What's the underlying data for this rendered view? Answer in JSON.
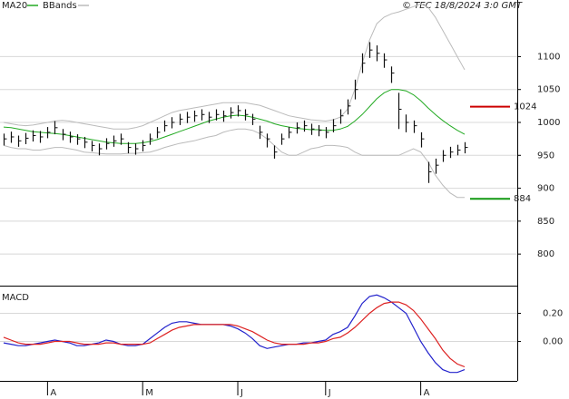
{
  "chart_data": {
    "type": "ohlc",
    "title": "© TEC 18/8/2024 3:0 GMT",
    "categories": [
      null,
      null,
      null,
      null,
      null,
      null,
      "A",
      null,
      null,
      null,
      null,
      null,
      null,
      null,
      null,
      null,
      null,
      null,
      null,
      "M",
      null,
      null,
      null,
      null,
      null,
      null,
      null,
      null,
      null,
      null,
      null,
      null,
      "J",
      null,
      null,
      null,
      null,
      null,
      null,
      null,
      null,
      null,
      null,
      null,
      "J",
      null,
      null,
      null,
      null,
      null,
      null,
      null,
      null,
      null,
      null,
      null,
      null,
      "A",
      null,
      null,
      null,
      null,
      null,
      null
    ],
    "bars": {
      "color": "#111111",
      "close": [
        975,
        978,
        972,
        976,
        980,
        978,
        985,
        992,
        982,
        978,
        975,
        970,
        965,
        960,
        968,
        972,
        975,
        962,
        960,
        965,
        975,
        985,
        995,
        1000,
        1005,
        1008,
        1010,
        1012,
        1008,
        1012,
        1010,
        1015,
        1018,
        1012,
        1005,
        985,
        975,
        955,
        975,
        985,
        992,
        995,
        990,
        988,
        985,
        995,
        1010,
        1025,
        1050,
        1090,
        1110,
        1105,
        1095,
        1075,
        1020,
        1000,
        995,
        975,
        925,
        935,
        950,
        955,
        958,
        962
      ],
      "high": [
        983,
        986,
        980,
        984,
        988,
        987,
        993,
        1002,
        990,
        986,
        982,
        978,
        972,
        968,
        976,
        980,
        983,
        970,
        968,
        973,
        983,
        993,
        1003,
        1008,
        1013,
        1016,
        1018,
        1020,
        1016,
        1020,
        1018,
        1023,
        1026,
        1020,
        1013,
        995,
        983,
        965,
        983,
        993,
        1000,
        1003,
        998,
        996,
        993,
        1005,
        1020,
        1035,
        1065,
        1105,
        1122,
        1117,
        1105,
        1085,
        1045,
        1012,
        1003,
        985,
        940,
        945,
        958,
        963,
        966,
        970
      ],
      "low": [
        965,
        969,
        963,
        967,
        971,
        969,
        976,
        982,
        973,
        969,
        966,
        961,
        956,
        950,
        959,
        963,
        966,
        953,
        951,
        956,
        966,
        976,
        986,
        991,
        996,
        999,
        1001,
        1003,
        999,
        1003,
        1001,
        1006,
        1009,
        1003,
        996,
        975,
        962,
        945,
        966,
        976,
        983,
        986,
        981,
        979,
        976,
        985,
        998,
        1012,
        1035,
        1075,
        1098,
        1093,
        1083,
        1060,
        990,
        985,
        984,
        962,
        908,
        922,
        940,
        946,
        950,
        953
      ]
    },
    "ma": {
      "name": "MA20",
      "color": "#22aa22",
      "values": [
        993,
        992,
        990,
        988,
        986,
        985,
        984,
        983,
        982,
        980,
        978,
        976,
        974,
        972,
        970,
        969,
        968,
        968,
        968,
        969,
        971,
        974,
        978,
        982,
        986,
        990,
        994,
        998,
        1002,
        1005,
        1008,
        1010,
        1011,
        1010,
        1008,
        1005,
        1002,
        998,
        995,
        993,
        991,
        990,
        989,
        989,
        988,
        988,
        990,
        994,
        1002,
        1012,
        1024,
        1036,
        1045,
        1050,
        1050,
        1048,
        1042,
        1033,
        1022,
        1012,
        1003,
        995,
        988,
        982
      ]
    },
    "bbands": {
      "name": "BBands",
      "color": "#bbbbbb",
      "upper": [
        1000,
        998,
        996,
        995,
        996,
        998,
        1000,
        1002,
        1003,
        1002,
        1000,
        998,
        996,
        994,
        992,
        990,
        990,
        990,
        992,
        995,
        1000,
        1005,
        1010,
        1015,
        1018,
        1020,
        1022,
        1024,
        1026,
        1028,
        1030,
        1030,
        1030,
        1030,
        1028,
        1026,
        1022,
        1018,
        1014,
        1010,
        1008,
        1006,
        1004,
        1003,
        1002,
        1004,
        1008,
        1020,
        1050,
        1090,
        1125,
        1150,
        1160,
        1165,
        1168,
        1172,
        1176,
        1180,
        1175,
        1160,
        1140,
        1120,
        1100,
        1080
      ],
      "lower": [
        965,
        962,
        960,
        960,
        958,
        958,
        960,
        962,
        962,
        960,
        958,
        955,
        954,
        953,
        952,
        952,
        952,
        953,
        953,
        954,
        955,
        958,
        962,
        965,
        968,
        970,
        972,
        975,
        978,
        980,
        985,
        988,
        990,
        990,
        988,
        983,
        975,
        965,
        955,
        950,
        950,
        955,
        960,
        962,
        965,
        965,
        964,
        962,
        955,
        950,
        950,
        950,
        950,
        950,
        950,
        955,
        960,
        955,
        940,
        920,
        905,
        893,
        886,
        886
      ]
    },
    "levels": [
      {
        "value": 1024,
        "color": "#cc0000"
      },
      {
        "value": 884,
        "color": "#119911"
      }
    ],
    "ylim": [
      752,
      1186
    ],
    "yticks": [
      800,
      850,
      900,
      950,
      1000,
      1050,
      1100
    ],
    "grid": true,
    "macd": {
      "title": "MACD",
      "ylim": [
        -0.28,
        0.39
      ],
      "yticks": [
        {
          "value": 0,
          "label": "0.00"
        },
        {
          "value": 0.2,
          "label": "0.20"
        }
      ],
      "series": [
        {
          "color": "#2222cc",
          "values": [
            -0.01,
            -0.02,
            -0.03,
            -0.03,
            -0.02,
            -0.01,
            0.0,
            0.01,
            0.0,
            -0.01,
            -0.03,
            -0.03,
            -0.02,
            -0.01,
            0.01,
            0.0,
            -0.02,
            -0.03,
            -0.03,
            -0.02,
            0.02,
            0.06,
            0.1,
            0.13,
            0.14,
            0.14,
            0.13,
            0.12,
            0.12,
            0.12,
            0.12,
            0.11,
            0.09,
            0.06,
            0.02,
            -0.03,
            -0.05,
            -0.04,
            -0.03,
            -0.02,
            -0.02,
            -0.01,
            -0.01,
            0.0,
            0.01,
            0.05,
            0.07,
            0.1,
            0.18,
            0.27,
            0.32,
            0.33,
            0.31,
            0.28,
            0.24,
            0.2,
            0.1,
            0.0,
            -0.08,
            -0.15,
            -0.2,
            -0.22,
            -0.22,
            -0.2
          ]
        },
        {
          "color": "#dd2222",
          "values": [
            0.03,
            0.01,
            -0.01,
            -0.02,
            -0.02,
            -0.02,
            -0.01,
            0.0,
            0.0,
            0.0,
            -0.01,
            -0.02,
            -0.02,
            -0.02,
            -0.01,
            -0.01,
            -0.02,
            -0.02,
            -0.02,
            -0.02,
            -0.01,
            0.02,
            0.05,
            0.08,
            0.1,
            0.11,
            0.12,
            0.12,
            0.12,
            0.12,
            0.12,
            0.12,
            0.11,
            0.09,
            0.07,
            0.04,
            0.01,
            -0.01,
            -0.02,
            -0.02,
            -0.02,
            -0.02,
            -0.01,
            -0.01,
            0.0,
            0.02,
            0.03,
            0.06,
            0.1,
            0.15,
            0.2,
            0.24,
            0.27,
            0.28,
            0.28,
            0.26,
            0.22,
            0.16,
            0.09,
            0.02,
            -0.06,
            -0.12,
            -0.16,
            -0.18
          ]
        }
      ]
    }
  }
}
